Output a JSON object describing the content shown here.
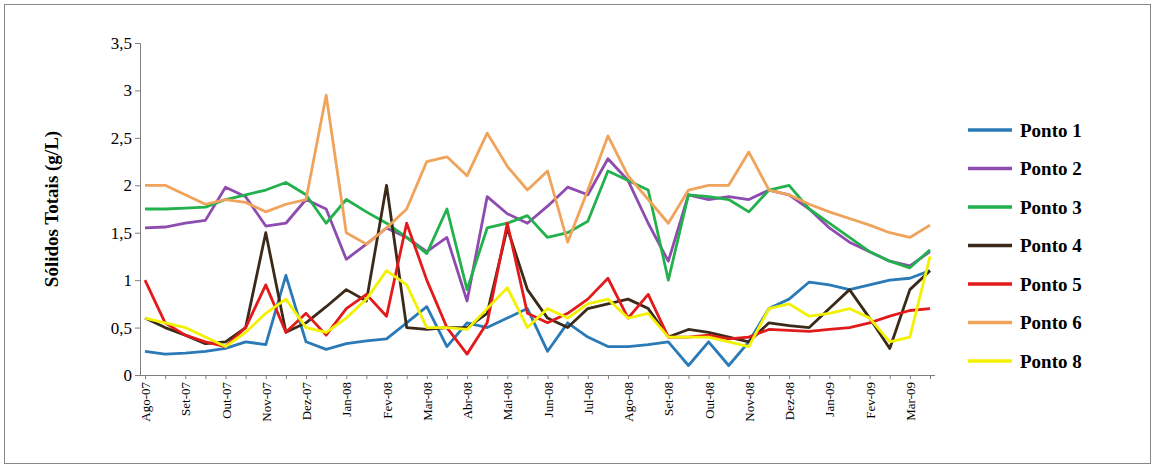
{
  "chart_data": {
    "type": "line",
    "y_label": "Sólidos Totais (g/L)",
    "categories": [
      "Ago-07",
      null,
      "Set-07",
      null,
      "Out-07",
      null,
      "Nov-07",
      null,
      "Dez-07",
      null,
      "Jan-08",
      null,
      "Fev-08",
      null,
      "Mar-08",
      null,
      "Abr-08",
      null,
      "Mai-08",
      null,
      "Jun-08",
      null,
      "Jul-08",
      null,
      "Ago-08",
      null,
      "Set-08",
      null,
      "Out-08",
      null,
      "Nov-08",
      null,
      "Dez-08",
      null,
      "Jan-09",
      null,
      "Fev-09",
      null,
      "Mar-09",
      null
    ],
    "ylim": [
      0,
      3.5
    ],
    "yticks": [
      0,
      {
        "value": 0.5,
        "label": "0,5"
      },
      1,
      {
        "value": 1.5,
        "label": "1,5"
      },
      2,
      {
        "value": 2.5,
        "label": "2,5"
      },
      3,
      {
        "value": 3.5,
        "label": "3,5"
      }
    ],
    "grid": false,
    "legend": "right",
    "series": [
      {
        "name": "Ponto 1",
        "color": "#2a7ab8",
        "values": [
          0.25,
          0.22,
          0.23,
          0.25,
          0.28,
          0.35,
          0.32,
          1.05,
          0.35,
          0.27,
          0.33,
          0.36,
          0.38,
          0.55,
          0.72,
          0.3,
          0.55,
          0.5,
          0.6,
          0.7,
          0.25,
          0.55,
          0.4,
          0.3,
          0.3,
          0.32,
          0.35,
          0.1,
          0.35,
          0.1,
          0.35,
          0.7,
          0.8,
          0.98,
          0.95,
          0.9,
          0.95,
          1.0,
          1.02,
          1.1
        ]
      },
      {
        "name": "Ponto 2",
        "color": "#8e4bb0",
        "values": [
          1.55,
          1.56,
          1.6,
          1.63,
          1.98,
          1.88,
          1.57,
          1.6,
          1.85,
          1.75,
          1.22,
          1.38,
          1.55,
          1.45,
          1.3,
          1.45,
          0.78,
          1.88,
          1.7,
          1.6,
          1.78,
          1.98,
          1.9,
          2.28,
          2.05,
          1.6,
          1.2,
          1.9,
          1.85,
          1.88,
          1.85,
          1.95,
          1.9,
          1.75,
          1.55,
          1.4,
          1.3,
          1.2,
          1.15,
          1.3
        ]
      },
      {
        "name": "Ponto 3",
        "color": "#22b14c",
        "values": [
          1.75,
          1.75,
          1.76,
          1.77,
          1.85,
          1.9,
          1.95,
          2.03,
          1.9,
          1.6,
          1.85,
          1.72,
          1.6,
          1.45,
          1.28,
          1.75,
          0.9,
          1.55,
          1.6,
          1.68,
          1.45,
          1.5,
          1.62,
          2.15,
          2.05,
          1.95,
          1.0,
          1.9,
          1.88,
          1.85,
          1.72,
          1.95,
          2.0,
          1.75,
          1.6,
          1.45,
          1.3,
          1.2,
          1.13,
          1.32
        ]
      },
      {
        "name": "Ponto 4",
        "color": "#3b2a1a",
        "values": [
          0.6,
          0.5,
          0.42,
          0.33,
          0.35,
          0.5,
          1.5,
          0.45,
          0.55,
          0.72,
          0.9,
          0.78,
          2.0,
          0.5,
          0.48,
          0.5,
          0.5,
          0.65,
          1.55,
          0.9,
          0.6,
          0.5,
          0.7,
          0.75,
          0.8,
          0.7,
          0.4,
          0.48,
          0.45,
          0.4,
          0.35,
          0.55,
          0.52,
          0.5,
          0.7,
          0.9,
          0.6,
          0.28,
          0.9,
          1.1
        ]
      },
      {
        "name": "Ponto 5",
        "color": "#e31a1c",
        "values": [
          1.0,
          0.55,
          0.42,
          0.35,
          0.3,
          0.5,
          0.95,
          0.45,
          0.65,
          0.42,
          0.7,
          0.85,
          0.62,
          1.6,
          1.0,
          0.5,
          0.22,
          0.55,
          1.6,
          0.65,
          0.55,
          0.65,
          0.8,
          1.02,
          0.6,
          0.85,
          0.4,
          0.4,
          0.42,
          0.38,
          0.4,
          0.48,
          0.47,
          0.46,
          0.48,
          0.5,
          0.55,
          0.62,
          0.68,
          0.7
        ]
      },
      {
        "name": "Ponto 6",
        "color": "#f0a35a",
        "values": [
          2.0,
          2.0,
          1.9,
          1.8,
          1.85,
          1.82,
          1.72,
          1.8,
          1.85,
          2.95,
          1.5,
          1.38,
          1.55,
          1.75,
          2.25,
          2.3,
          2.1,
          2.55,
          2.2,
          1.95,
          2.15,
          1.4,
          1.95,
          2.52,
          2.1,
          1.85,
          1.6,
          1.95,
          2.0,
          2.0,
          2.35,
          1.95,
          1.9,
          1.8,
          1.72,
          1.65,
          1.58,
          1.5,
          1.45,
          1.58
        ]
      },
      {
        "name": "Ponto 8",
        "color": "#f2f200",
        "values": [
          0.6,
          0.55,
          0.5,
          0.4,
          0.3,
          0.45,
          0.65,
          0.8,
          0.5,
          0.45,
          0.6,
          0.8,
          1.1,
          0.95,
          0.5,
          0.5,
          0.48,
          0.7,
          0.92,
          0.5,
          0.7,
          0.6,
          0.75,
          0.8,
          0.6,
          0.65,
          0.4,
          0.4,
          0.4,
          0.35,
          0.3,
          0.7,
          0.75,
          0.62,
          0.65,
          0.7,
          0.6,
          0.35,
          0.4,
          1.25
        ]
      }
    ]
  }
}
